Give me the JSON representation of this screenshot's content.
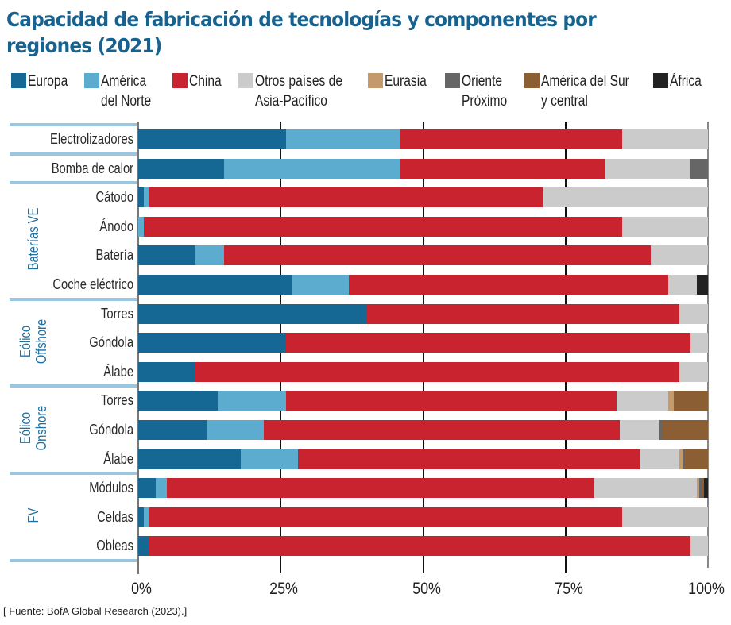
{
  "title": "Capacidad de fabricación de tecnologías y componentes por regiones (2021)",
  "source": "[ Fuente: BofA Global Research (2023).]",
  "chart_data": {
    "type": "bar",
    "orientation": "horizontal",
    "stacked": true,
    "normalized": true,
    "title": "Capacidad de fabricación de tecnologías y componentes por regiones (2021)",
    "xlabel": "",
    "ylabel": "",
    "xlim": [
      0,
      100
    ],
    "x_tick_labels": [
      "0%",
      "25%",
      "50%",
      "75%",
      "100%"
    ],
    "x_ticks": [
      0,
      25,
      50,
      75,
      100
    ],
    "grid": true,
    "legend_position": "top",
    "groups": [
      {
        "name": "",
        "categories": [
          "Electrolizadores"
        ]
      },
      {
        "name": "",
        "categories": [
          "Bomba de calor"
        ]
      },
      {
        "name": "Baterías VE",
        "categories": [
          "Cátodo",
          "Ánodo",
          "Batería",
          "Coche eléctrico"
        ]
      },
      {
        "name": "Eólico\nOffshore",
        "categories": [
          "Torres",
          "Góndola",
          "Álabe"
        ]
      },
      {
        "name": "Eólico\nOnshore",
        "categories": [
          "Torres",
          "Góndola",
          "Álabe"
        ]
      },
      {
        "name": "FV",
        "categories": [
          "Módulos",
          "Celdas",
          "Obleas"
        ]
      }
    ],
    "categories": [
      "Electrolizadores",
      "Bomba de calor",
      "Cátodo",
      "Ánodo",
      "Batería",
      "Coche eléctrico",
      "Torres",
      "Góndola",
      "Álabe",
      "Torres",
      "Góndola",
      "Álabe",
      "Módulos",
      "Celdas",
      "Obleas"
    ],
    "series": [
      {
        "name": "Europa",
        "legend_label": "Europa",
        "color": "#156794",
        "values": [
          26,
          15,
          1,
          0,
          10,
          27,
          40,
          26,
          10,
          14,
          12,
          18,
          3,
          1,
          2
        ]
      },
      {
        "name": "América del Norte",
        "legend_label": "América\ndel Norte",
        "color": "#5bacce",
        "values": [
          20,
          31,
          1,
          1,
          5,
          10,
          0,
          0,
          0,
          12,
          10,
          10,
          2,
          1,
          0
        ]
      },
      {
        "name": "China",
        "legend_label": "China",
        "color": "#c8232f",
        "values": [
          39,
          36,
          69,
          84,
          75,
          56,
          55,
          71,
          85,
          58,
          62.5,
          60,
          75,
          83,
          95
        ]
      },
      {
        "name": "Otros países de Asia-Pacífico",
        "legend_label": "Otros países de\nAsia-Pacífico",
        "color": "#cbcbcb",
        "values": [
          15,
          15,
          29,
          15,
          10,
          5,
          5,
          3,
          5,
          9,
          7,
          7,
          18,
          15,
          3
        ]
      },
      {
        "name": "Eurasia",
        "legend_label": "Eurasia",
        "color": "#c49a6c",
        "values": [
          0,
          0,
          0,
          0,
          0,
          0,
          0,
          0,
          0,
          1,
          0,
          0.5,
          0.5,
          0,
          0
        ]
      },
      {
        "name": "Oriente Próximo",
        "legend_label": "Oriente\nPróximo",
        "color": "#666666",
        "values": [
          0,
          3,
          0,
          0,
          0,
          0,
          0,
          0,
          0,
          0,
          0.5,
          0.5,
          0.4,
          0,
          0
        ]
      },
      {
        "name": "América del Sur y central",
        "legend_label": "América del Sur\ny central",
        "color": "#8b5e34",
        "values": [
          0,
          0,
          0,
          0,
          0,
          0,
          0,
          0,
          0,
          6,
          8,
          4,
          0.4,
          0,
          0
        ]
      },
      {
        "name": "África",
        "legend_label": "África",
        "color": "#222222",
        "values": [
          0,
          0,
          0,
          0,
          0,
          2,
          0,
          0,
          0,
          0,
          0,
          0,
          0.7,
          0,
          0
        ]
      }
    ]
  }
}
